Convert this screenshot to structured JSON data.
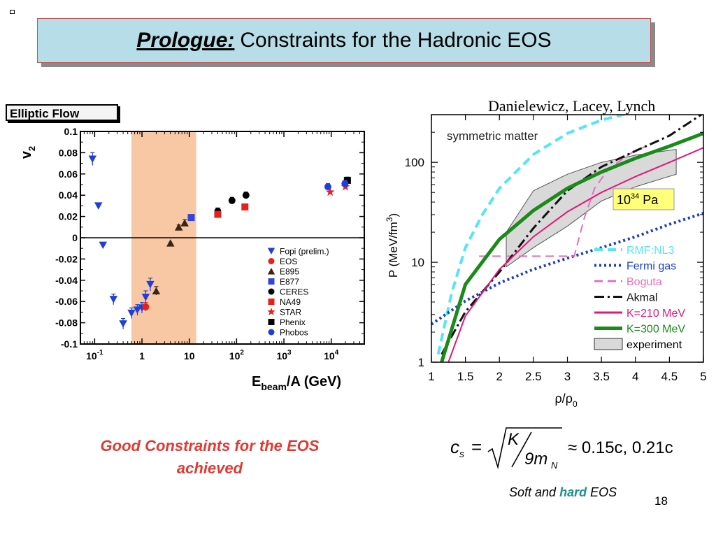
{
  "slide": {
    "title_bold": "Prologue:",
    "title_rest": "Constraints for the Hadronic EOS",
    "panel_label": "Elliptic Flow",
    "credit": "Danielewicz, Lacey, Lynch",
    "conclusion_line1": "Good Constraints for the EOS",
    "conclusion_line2": "achieved",
    "formula": {
      "lhs": "c",
      "lhs_sub": "s",
      "numerator": "K",
      "denominator": "9m",
      "denominator_sub": "N",
      "approx_text": "≈ 0.15c, 0.21c"
    },
    "caption_soft": "Soft and",
    "caption_hard": "hard",
    "caption_eos": "EOS",
    "slide_number": "18"
  },
  "chart_data": [
    {
      "type": "scatter",
      "xscale": "log",
      "xlim": [
        0.05,
        50000
      ],
      "ylim": [
        -0.1,
        0.1
      ],
      "ylabel": "v",
      "ylabel_sub": "2",
      "xlabel": "E",
      "xlabel_sub": "beam",
      "xlabel_rest": "/A (GeV)",
      "x_ticks": [
        {
          "value": 0.1,
          "base": "10",
          "exp": "-1"
        },
        {
          "value": 1,
          "base": "1",
          "exp": ""
        },
        {
          "value": 10,
          "base": "10",
          "exp": ""
        },
        {
          "value": 100,
          "base": "10",
          "exp": "2"
        },
        {
          "value": 1000,
          "base": "10",
          "exp": "3"
        },
        {
          "value": 10000,
          "base": "10",
          "exp": "4"
        }
      ],
      "y_ticks": [
        {
          "value": 0.1,
          "label": "0.1"
        },
        {
          "value": 0.08,
          "label": "0.08"
        },
        {
          "value": 0.06,
          "label": "0.06"
        },
        {
          "value": 0.04,
          "label": "0.04"
        },
        {
          "value": 0.02,
          "label": "0.02"
        },
        {
          "value": 0,
          "label": "0"
        },
        {
          "value": -0.02,
          "label": "-0.02"
        },
        {
          "value": -0.04,
          "label": "-0.04"
        },
        {
          "value": -0.06,
          "label": "-0.06"
        },
        {
          "value": -0.08,
          "label": "-0.08"
        },
        {
          "value": -0.1,
          "label": "-0.1"
        }
      ],
      "shaded_band": {
        "x": [
          0.6,
          14
        ],
        "color": "#f8c8a4"
      },
      "zero_line": true,
      "series": [
        {
          "name": "Fopi (prelim.)",
          "marker": "triangle-down",
          "color": "#1f3fd8",
          "points": [
            [
              0.09,
              0.074,
              0.006
            ],
            [
              0.12,
              0.03,
              0
            ],
            [
              0.15,
              -0.007,
              0
            ],
            [
              0.25,
              -0.058,
              0.005
            ],
            [
              0.4,
              -0.081,
              0.005
            ],
            [
              0.6,
              -0.071,
              0.005
            ],
            [
              0.8,
              -0.068,
              0.005
            ],
            [
              1.0,
              -0.066,
              0.005
            ],
            [
              1.2,
              -0.056,
              0.006
            ],
            [
              1.5,
              -0.044,
              0.006
            ]
          ]
        },
        {
          "name": "EOS",
          "marker": "circle",
          "color": "#e8201c",
          "points": [
            [
              1.2,
              -0.065,
              0.004
            ]
          ]
        },
        {
          "name": "E895",
          "marker": "triangle-up",
          "color": "#3a2414",
          "points": [
            [
              2,
              -0.05,
              0.004
            ],
            [
              4,
              -0.005,
              0
            ],
            [
              6,
              0.01,
              0.002
            ],
            [
              8,
              0.014,
              0.003
            ]
          ]
        },
        {
          "name": "E877",
          "marker": "square",
          "color": "#3346d8",
          "points": [
            [
              11,
              0.019,
              0
            ]
          ]
        },
        {
          "name": "CERES",
          "marker": "circle",
          "color": "#000000",
          "points": [
            [
              40,
              0.025,
              0.003
            ],
            [
              80,
              0.035,
              0.003
            ],
            [
              158,
              0.04,
              0.003
            ]
          ]
        },
        {
          "name": "NA49",
          "marker": "square",
          "color": "#e8201c",
          "points": [
            [
              40,
              0.022,
              0
            ],
            [
              150,
              0.029,
              0
            ]
          ]
        },
        {
          "name": "STAR",
          "marker": "star",
          "color": "#e8201c",
          "points": [
            [
              9500,
              0.043,
              0
            ],
            [
              20000,
              0.048,
              0
            ]
          ]
        },
        {
          "name": "Phenix",
          "marker": "square",
          "color": "#000000",
          "points": [
            [
              22000,
              0.054,
              0.003
            ]
          ]
        },
        {
          "name": "Phobos",
          "marker": "circle",
          "color": "#1f3fd8",
          "points": [
            [
              8500,
              0.048,
              0.003
            ],
            [
              19500,
              0.051,
              0.003
            ]
          ]
        }
      ]
    },
    {
      "type": "line",
      "yscale": "log",
      "xlim": [
        1,
        5
      ],
      "ylim": [
        1,
        300
      ],
      "annotation": "symmetric matter",
      "inset_label": {
        "base": "10",
        "exp": "34",
        "unit": "Pa"
      },
      "ylabel": "P (MeV/fm",
      "ylabel_sup": "3",
      "ylabel_end": ")",
      "xlabel": "ρ/ρ",
      "xlabel_sub": "0",
      "x_ticks": [
        {
          "value": 1,
          "label": "1"
        },
        {
          "value": 1.5,
          "label": "1.5"
        },
        {
          "value": 2,
          "label": "2"
        },
        {
          "value": 2.5,
          "label": "2.5"
        },
        {
          "value": 3,
          "label": "3"
        },
        {
          "value": 3.5,
          "label": "3.5"
        },
        {
          "value": 4,
          "label": "4"
        },
        {
          "value": 4.5,
          "label": "4.5"
        },
        {
          "value": 5,
          "label": "5"
        }
      ],
      "y_ticks": [
        {
          "value": 1,
          "label": "1"
        },
        {
          "value": 10,
          "label": "10"
        },
        {
          "value": 100,
          "label": "100"
        }
      ],
      "experiment_band": {
        "upper": [
          [
            2.1,
            20
          ],
          [
            2.5,
            52
          ],
          [
            3.0,
            76
          ],
          [
            3.5,
            100
          ],
          [
            4.0,
            118
          ],
          [
            4.6,
            135
          ]
        ],
        "lower": [
          [
            4.6,
            76
          ],
          [
            4.0,
            57
          ],
          [
            3.5,
            41
          ],
          [
            3.0,
            23
          ],
          [
            2.5,
            14
          ],
          [
            2.1,
            9
          ]
        ],
        "color": "#d9d9d9"
      },
      "series": [
        {
          "name": "RMF:NL3",
          "color": "#55e6f4",
          "dash": "dash",
          "width": 4,
          "points": [
            [
              1.1,
              1.2
            ],
            [
              1.3,
              5
            ],
            [
              1.5,
              14
            ],
            [
              1.75,
              30
            ],
            [
              2.0,
              55
            ],
            [
              2.5,
              120
            ],
            [
              3.0,
              195
            ],
            [
              3.5,
              265
            ],
            [
              3.9,
              310
            ]
          ]
        },
        {
          "name": "Fermi gas",
          "color": "#1a3dcc",
          "dash": "dot",
          "width": 4,
          "points": [
            [
              1.0,
              2.4
            ],
            [
              1.5,
              4.1
            ],
            [
              2.0,
              6.2
            ],
            [
              2.5,
              8.5
            ],
            [
              3.0,
              11
            ],
            [
              3.5,
              14
            ],
            [
              4.0,
              18
            ],
            [
              4.5,
              24
            ],
            [
              5.0,
              31
            ]
          ]
        },
        {
          "name": "Boguta",
          "color": "#e070c0",
          "dash": "dash",
          "width": 2,
          "points": [
            [
              1.7,
              11.5
            ],
            [
              2.5,
              11.5
            ],
            [
              3.1,
              11.5
            ],
            [
              3.25,
              28
            ],
            [
              3.4,
              55
            ],
            [
              3.6,
              85
            ],
            [
              3.9,
              120
            ],
            [
              4.2,
              150
            ]
          ]
        },
        {
          "name": "Akmal",
          "color": "#111111",
          "dash": "dashdot",
          "width": 3,
          "points": [
            [
              1.15,
              1.2
            ],
            [
              1.5,
              3.2
            ],
            [
              2.0,
              8
            ],
            [
              2.5,
              22
            ],
            [
              3.0,
              52
            ],
            [
              3.5,
              90
            ],
            [
              4.0,
              130
            ],
            [
              4.5,
              185
            ],
            [
              5.0,
              310
            ]
          ]
        },
        {
          "name": "K=210 MeV",
          "color": "#e0187a",
          "dash": "solid",
          "width": 2,
          "points": [
            [
              1.25,
              1.0
            ],
            [
              1.5,
              2.9
            ],
            [
              2.0,
              8.5
            ],
            [
              2.5,
              18
            ],
            [
              3.0,
              32
            ],
            [
              3.5,
              50
            ],
            [
              4.0,
              72
            ],
            [
              4.5,
              100
            ],
            [
              5.0,
              140
            ]
          ]
        },
        {
          "name": "K=300 MeV",
          "color": "#1a8a1a",
          "dash": "solid",
          "width": 5,
          "points": [
            [
              1.15,
              1.0
            ],
            [
              1.5,
              6
            ],
            [
              2.0,
              17
            ],
            [
              2.5,
              33
            ],
            [
              3.0,
              55
            ],
            [
              3.5,
              80
            ],
            [
              4.0,
              110
            ],
            [
              4.5,
              145
            ],
            [
              5.0,
              195
            ]
          ]
        }
      ],
      "legend_experiment": "experiment"
    }
  ]
}
